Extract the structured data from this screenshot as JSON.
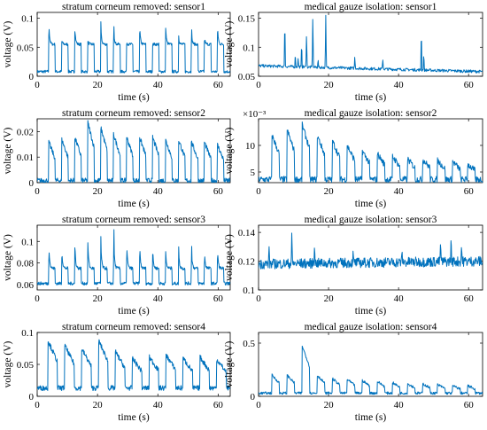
{
  "chart_data": [
    {
      "type": "line",
      "title": "stratum corneum removed: sensor1",
      "xlabel": "time (s)",
      "ylabel": "voltage (V)",
      "xlim": [
        0,
        64
      ],
      "ylim": [
        0,
        0.11
      ],
      "xticks": [
        0,
        20,
        40,
        60
      ],
      "yticks": [
        0,
        0.05,
        0.1
      ],
      "ytick_labels": [
        "0",
        "0.05",
        "0.1"
      ],
      "exponent": "",
      "series": [
        {
          "pulses": {
            "start": 3.8,
            "period": 4.3,
            "count": 14,
            "width": 2.2,
            "base": 0.008,
            "peaks": [
              0.105,
              0.065,
              0.1,
              0.065,
              0.102,
              0.09,
              0.06,
              0.098,
              0.055,
              0.1,
              0.075,
              0.08,
              0.07,
              0.1
            ],
            "plateau": 0.055,
            "spike": true,
            "noise": 0.0025
          }
        }
      ]
    },
    {
      "type": "line",
      "title": "medical gauze isolation: sensor1",
      "xlabel": "time (s)",
      "ylabel": "voltage (V)",
      "xlim": [
        0,
        64
      ],
      "ylim": [
        0.05,
        0.16
      ],
      "xticks": [
        0,
        20,
        40,
        60
      ],
      "yticks": [
        0.05,
        0.1,
        0.15
      ],
      "ytick_labels": [
        "0.05",
        "0.1",
        "0.15"
      ],
      "exponent": "",
      "series": [
        {
          "baseline": {
            "start": 0.068,
            "end": 0.058,
            "noise": 0.0025
          },
          "spikes": [
            [
              7.5,
              0.152
            ],
            [
              10.5,
              0.09
            ],
            [
              11.3,
              0.082
            ],
            [
              12.3,
              0.11
            ],
            [
              13.7,
              0.125
            ],
            [
              15.5,
              0.158
            ],
            [
              17.0,
              0.08
            ],
            [
              19.2,
              0.155
            ],
            [
              27.5,
              0.085
            ],
            [
              35.5,
              0.08
            ],
            [
              46.5,
              0.135
            ],
            [
              47.2,
              0.09
            ]
          ]
        }
      ]
    },
    {
      "type": "line",
      "title": "stratum corneum removed: sensor2",
      "xlabel": "time (s)",
      "ylabel": "voltage (V)",
      "xlim": [
        0,
        64
      ],
      "ylim": [
        0,
        0.025
      ],
      "xticks": [
        0,
        20,
        40,
        60
      ],
      "yticks": [
        0,
        0.01,
        0.02
      ],
      "ytick_labels": [
        "0",
        "0.01",
        "0.02"
      ],
      "exponent": "",
      "series": [
        {
          "pulses": {
            "start": 3.8,
            "period": 4.3,
            "count": 14,
            "width": 2.2,
            "base": 0.0008,
            "peaks": [
              0.016,
              0.017,
              0.018,
              0.024,
              0.022,
              0.019,
              0.018,
              0.018,
              0.018,
              0.017,
              0.017,
              0.016,
              0.016,
              0.015
            ],
            "plateau": 0.009,
            "spike": false,
            "noise": 0.001
          }
        }
      ]
    },
    {
      "type": "line",
      "title": "medical gauze isolation: sensor2",
      "xlabel": "time (s)",
      "ylabel": "voltage (V)",
      "xlim": [
        0,
        64
      ],
      "ylim": [
        3,
        15
      ],
      "xticks": [
        0,
        20,
        40,
        60
      ],
      "yticks": [
        5,
        10
      ],
      "ytick_labels": [
        "5",
        "10"
      ],
      "exponent": "×10⁻³",
      "series": [
        {
          "pulses": {
            "start": 3.8,
            "period": 4.3,
            "count": 14,
            "width": 2.2,
            "base": 3.6,
            "peaks": [
              12,
              13,
              14,
              12,
              11,
              10,
              9,
              8.5,
              8,
              7.5,
              7.5,
              7.2,
              7,
              6.5
            ],
            "plateau": 8,
            "spike": false,
            "noise": 0.6
          }
        }
      ]
    },
    {
      "type": "line",
      "title": "stratum corneum removed: sensor3",
      "xlabel": "time (s)",
      "ylabel": "voltage (V)",
      "xlim": [
        0,
        64
      ],
      "ylim": [
        0.055,
        0.115
      ],
      "xticks": [
        0,
        20,
        40,
        60
      ],
      "yticks": [
        0.06,
        0.08,
        0.1
      ],
      "ytick_labels": [
        "0.06",
        "0.08",
        "0.1"
      ],
      "exponent": "",
      "series": [
        {
          "pulses": {
            "start": 3.8,
            "period": 4.3,
            "count": 14,
            "width": 2.2,
            "base": 0.061,
            "peaks": [
              0.105,
              0.1,
              0.11,
              0.112,
              0.112,
              0.112,
              0.108,
              0.105,
              0.1,
              0.098,
              0.1,
              0.098,
              0.095,
              0.1
            ],
            "plateau": 0.075,
            "spike": true,
            "noise": 0.0015
          }
        }
      ]
    },
    {
      "type": "line",
      "title": "medical gauze isolation: sensor3",
      "xlabel": "time (s)",
      "ylabel": "voltage (V)",
      "xlim": [
        0,
        64
      ],
      "ylim": [
        0.1,
        0.145
      ],
      "xticks": [
        0,
        20,
        40,
        60
      ],
      "yticks": [
        0.1,
        0.12,
        0.14
      ],
      "ytick_labels": [
        "0.1",
        "0.12",
        "0.14"
      ],
      "exponent": "",
      "series": [
        {
          "baseline": {
            "start": 0.118,
            "end": 0.12,
            "noise": 0.0035
          },
          "spikes": [
            [
              3,
              0.13
            ],
            [
              9.5,
              0.142
            ],
            [
              16,
              0.133
            ],
            [
              18.5,
              0.11
            ],
            [
              27,
              0.127
            ],
            [
              41,
              0.128
            ],
            [
              52,
              0.135
            ],
            [
              55,
              0.138
            ],
            [
              58,
              0.132
            ]
          ]
        }
      ]
    },
    {
      "type": "line",
      "title": "stratum corneum removed: sensor4",
      "xlabel": "time (s)",
      "ylabel": "voltage (V)",
      "xlim": [
        0,
        64
      ],
      "ylim": [
        0,
        0.1
      ],
      "xticks": [
        0,
        20,
        40,
        60
      ],
      "yticks": [
        0,
        0.05,
        0.1
      ],
      "ytick_labels": [
        "0",
        "0.05",
        "0.1"
      ],
      "exponent": "",
      "series": [
        {
          "pulses": {
            "start": 3.5,
            "period": 5.6,
            "count": 11,
            "width": 3.2,
            "base": 0.013,
            "peaks": [
              0.088,
              0.08,
              0.075,
              0.088,
              0.07,
              0.06,
              0.062,
              0.065,
              0.06,
              0.062,
              0.058
            ],
            "plateau": 0.06,
            "spike": false,
            "noise": 0.004
          }
        }
      ]
    },
    {
      "type": "line",
      "title": "medical gauze isolation: sensor4",
      "xlabel": "time (s)",
      "ylabel": "voltage (V)",
      "xlim": [
        0,
        64
      ],
      "ylim": [
        0,
        0.6
      ],
      "xticks": [
        0,
        20,
        40,
        60
      ],
      "yticks": [
        0,
        0.5
      ],
      "ytick_labels": [
        "0",
        "0.5"
      ],
      "exponent": "",
      "series": [
        {
          "pulses": {
            "start": 3.8,
            "period": 4.3,
            "count": 14,
            "width": 2.2,
            "base": 0.03,
            "peaks": [
              0.2,
              0.2,
              0.48,
              0.2,
              0.17,
              0.16,
              0.15,
              0.14,
              0.13,
              0.12,
              0.12,
              0.11,
              0.1,
              0.1
            ],
            "plateau": 0.12,
            "spike": false,
            "noise": 0.012
          }
        }
      ]
    }
  ]
}
